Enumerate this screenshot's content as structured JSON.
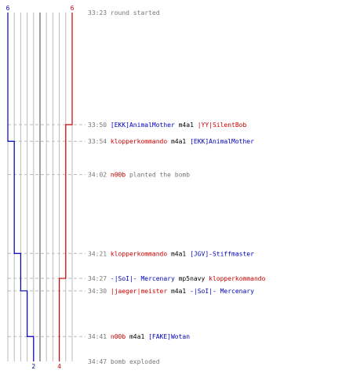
{
  "chart_data": {
    "type": "line",
    "title": "",
    "xlabel": "",
    "ylabel": "",
    "teams": {
      "left": {
        "name": "",
        "color": "#0000bb",
        "start_count": 6,
        "end_count": 2
      },
      "right": {
        "name": "",
        "color": "#cc0000",
        "start_count": 6,
        "end_count": 4
      }
    },
    "x_range": [
      0,
      10
    ],
    "series": [
      {
        "team": "left",
        "color": "#0000bb",
        "points": [
          [
            "33:23",
            0
          ],
          [
            "33:54",
            1
          ],
          [
            "34:21",
            2
          ],
          [
            "34:30",
            3
          ],
          [
            "34:41",
            4
          ],
          [
            "34:47",
            4
          ]
        ]
      },
      {
        "team": "right",
        "color": "#cc0000",
        "points": [
          [
            "33:23",
            10
          ],
          [
            "33:50",
            9
          ],
          [
            "34:27",
            8
          ],
          [
            "34:47",
            8
          ]
        ]
      }
    ]
  },
  "events": [
    {
      "time": "33:23",
      "parts": [
        {
          "text": "round started",
          "color": "#777777"
        }
      ]
    },
    {
      "time": "33:50",
      "parts": [
        {
          "text": "[EKK]AnimalMother",
          "color": "#0000bb"
        },
        {
          "text": " m4a1 ",
          "color": "#000000"
        },
        {
          "text": "|YY|SilentBob",
          "color": "#cc0000"
        }
      ]
    },
    {
      "time": "33:54",
      "parts": [
        {
          "text": "klopperkommando",
          "color": "#cc0000"
        },
        {
          "text": " m4a1 ",
          "color": "#000000"
        },
        {
          "text": "[EKK]AnimalMother",
          "color": "#0000bb"
        }
      ]
    },
    {
      "time": "34:02",
      "parts": [
        {
          "text": "n00b",
          "color": "#cc0000"
        },
        {
          "text": " planted the bomb",
          "color": "#777777"
        }
      ]
    },
    {
      "time": "34:21",
      "parts": [
        {
          "text": "klopperkommando",
          "color": "#cc0000"
        },
        {
          "text": " m4a1 ",
          "color": "#000000"
        },
        {
          "text": "[JGV]-Stiffmaster",
          "color": "#0000bb"
        }
      ]
    },
    {
      "time": "34:27",
      "parts": [
        {
          "text": "-|SoI|- Mercenary",
          "color": "#0000bb"
        },
        {
          "text": " mp5navy ",
          "color": "#000000"
        },
        {
          "text": "klopperkommando",
          "color": "#cc0000"
        }
      ]
    },
    {
      "time": "34:30",
      "parts": [
        {
          "text": "|jaeger|meister",
          "color": "#cc0000"
        },
        {
          "text": " m4a1 ",
          "color": "#000000"
        },
        {
          "text": "-|SoI|- Mercenary",
          "color": "#0000bb"
        }
      ]
    },
    {
      "time": "34:41",
      "parts": [
        {
          "text": "n00b",
          "color": "#cc0000"
        },
        {
          "text": " m4a1 ",
          "color": "#000000"
        },
        {
          "text": "[FAKE]Wotan",
          "color": "#0000bb"
        }
      ]
    },
    {
      "time": "34:47",
      "parts": [
        {
          "text": "bomb exploded",
          "color": "#777777"
        }
      ]
    }
  ],
  "colors": {
    "grid": "#bbbbbb",
    "center": "#777777",
    "dash": "#bbbbbb",
    "time": "#777777"
  }
}
